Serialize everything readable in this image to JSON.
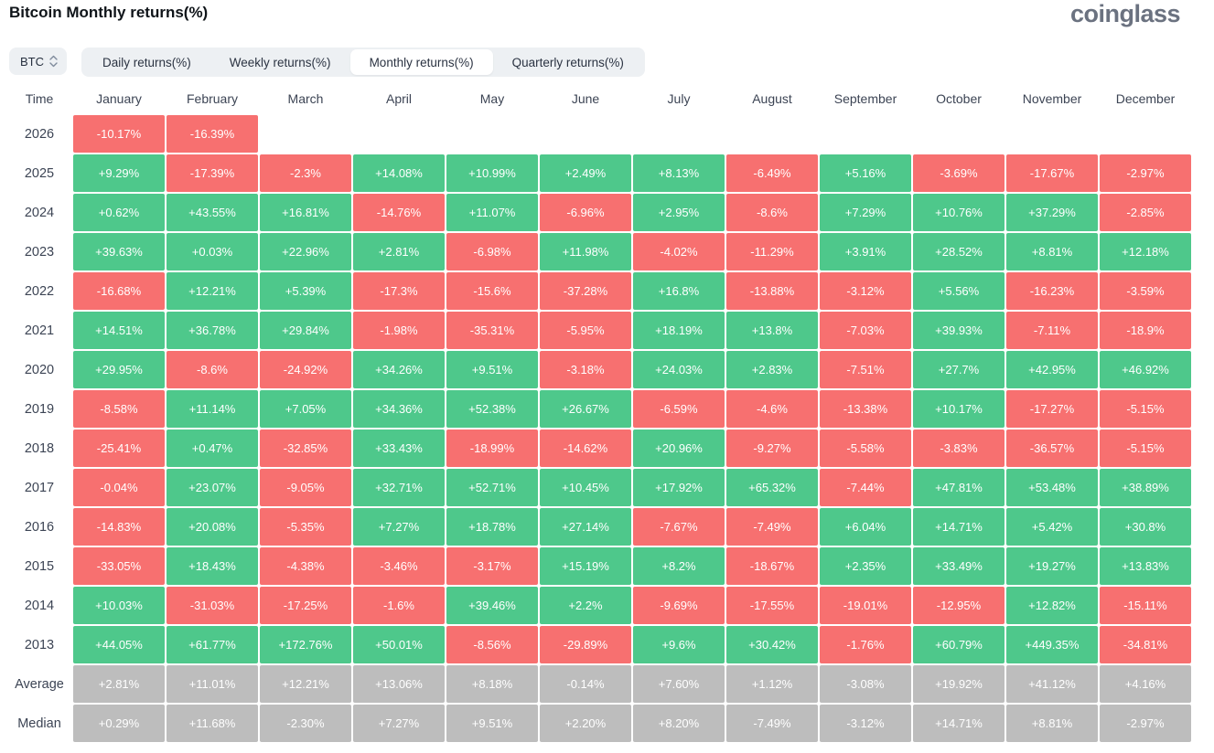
{
  "header": {
    "title": "Bitcoin Monthly returns(%)",
    "logo_text": "coinglass"
  },
  "controls": {
    "coin_selector": {
      "value": "BTC",
      "icon": "updown-chevrons-icon"
    },
    "tabs": [
      {
        "label": "Daily returns(%)",
        "active": false
      },
      {
        "label": "Weekly returns(%)",
        "active": false
      },
      {
        "label": "Monthly returns(%)",
        "active": true
      },
      {
        "label": "Quarterly returns(%)",
        "active": false
      }
    ]
  },
  "colors": {
    "positive": "#4ec88b",
    "negative": "#f77070",
    "neutral": "#bdbdbd",
    "tab_bg": "#edf0f3",
    "active_tab_bg": "#ffffff"
  },
  "chart_data": {
    "type": "heatmap",
    "title": "Bitcoin Monthly returns(%)",
    "time_header": "Time",
    "columns": [
      "January",
      "February",
      "March",
      "April",
      "May",
      "June",
      "July",
      "August",
      "September",
      "October",
      "November",
      "December"
    ],
    "legend": "green = positive monthly return, red = negative monthly return, gray = summary statistics",
    "rows": [
      {
        "label": "2026",
        "type": "year",
        "values": [
          "-10.17%",
          "-16.39%",
          null,
          null,
          null,
          null,
          null,
          null,
          null,
          null,
          null,
          null
        ]
      },
      {
        "label": "2025",
        "type": "year",
        "values": [
          "+9.29%",
          "-17.39%",
          "-2.3%",
          "+14.08%",
          "+10.99%",
          "+2.49%",
          "+8.13%",
          "-6.49%",
          "+5.16%",
          "-3.69%",
          "-17.67%",
          "-2.97%"
        ]
      },
      {
        "label": "2024",
        "type": "year",
        "values": [
          "+0.62%",
          "+43.55%",
          "+16.81%",
          "-14.76%",
          "+11.07%",
          "-6.96%",
          "+2.95%",
          "-8.6%",
          "+7.29%",
          "+10.76%",
          "+37.29%",
          "-2.85%"
        ]
      },
      {
        "label": "2023",
        "type": "year",
        "values": [
          "+39.63%",
          "+0.03%",
          "+22.96%",
          "+2.81%",
          "-6.98%",
          "+11.98%",
          "-4.02%",
          "-11.29%",
          "+3.91%",
          "+28.52%",
          "+8.81%",
          "+12.18%"
        ]
      },
      {
        "label": "2022",
        "type": "year",
        "values": [
          "-16.68%",
          "+12.21%",
          "+5.39%",
          "-17.3%",
          "-15.6%",
          "-37.28%",
          "+16.8%",
          "-13.88%",
          "-3.12%",
          "+5.56%",
          "-16.23%",
          "-3.59%"
        ]
      },
      {
        "label": "2021",
        "type": "year",
        "values": [
          "+14.51%",
          "+36.78%",
          "+29.84%",
          "-1.98%",
          "-35.31%",
          "-5.95%",
          "+18.19%",
          "+13.8%",
          "-7.03%",
          "+39.93%",
          "-7.11%",
          "-18.9%"
        ]
      },
      {
        "label": "2020",
        "type": "year",
        "values": [
          "+29.95%",
          "-8.6%",
          "-24.92%",
          "+34.26%",
          "+9.51%",
          "-3.18%",
          "+24.03%",
          "+2.83%",
          "-7.51%",
          "+27.7%",
          "+42.95%",
          "+46.92%"
        ]
      },
      {
        "label": "2019",
        "type": "year",
        "values": [
          "-8.58%",
          "+11.14%",
          "+7.05%",
          "+34.36%",
          "+52.38%",
          "+26.67%",
          "-6.59%",
          "-4.6%",
          "-13.38%",
          "+10.17%",
          "-17.27%",
          "-5.15%"
        ]
      },
      {
        "label": "2018",
        "type": "year",
        "values": [
          "-25.41%",
          "+0.47%",
          "-32.85%",
          "+33.43%",
          "-18.99%",
          "-14.62%",
          "+20.96%",
          "-9.27%",
          "-5.58%",
          "-3.83%",
          "-36.57%",
          "-5.15%"
        ]
      },
      {
        "label": "2017",
        "type": "year",
        "values": [
          "-0.04%",
          "+23.07%",
          "-9.05%",
          "+32.71%",
          "+52.71%",
          "+10.45%",
          "+17.92%",
          "+65.32%",
          "-7.44%",
          "+47.81%",
          "+53.48%",
          "+38.89%"
        ]
      },
      {
        "label": "2016",
        "type": "year",
        "values": [
          "-14.83%",
          "+20.08%",
          "-5.35%",
          "+7.27%",
          "+18.78%",
          "+27.14%",
          "-7.67%",
          "-7.49%",
          "+6.04%",
          "+14.71%",
          "+5.42%",
          "+30.8%"
        ]
      },
      {
        "label": "2015",
        "type": "year",
        "values": [
          "-33.05%",
          "+18.43%",
          "-4.38%",
          "-3.46%",
          "-3.17%",
          "+15.19%",
          "+8.2%",
          "-18.67%",
          "+2.35%",
          "+33.49%",
          "+19.27%",
          "+13.83%"
        ]
      },
      {
        "label": "2014",
        "type": "year",
        "values": [
          "+10.03%",
          "-31.03%",
          "-17.25%",
          "-1.6%",
          "+39.46%",
          "+2.2%",
          "-9.69%",
          "-17.55%",
          "-19.01%",
          "-12.95%",
          "+12.82%",
          "-15.11%"
        ]
      },
      {
        "label": "2013",
        "type": "year",
        "values": [
          "+44.05%",
          "+61.77%",
          "+172.76%",
          "+50.01%",
          "-8.56%",
          "-29.89%",
          "+9.6%",
          "+30.42%",
          "-1.76%",
          "+60.79%",
          "+449.35%",
          "-34.81%"
        ]
      },
      {
        "label": "Average",
        "type": "stat",
        "values": [
          "+2.81%",
          "+11.01%",
          "+12.21%",
          "+13.06%",
          "+8.18%",
          "-0.14%",
          "+7.60%",
          "+1.12%",
          "-3.08%",
          "+19.92%",
          "+41.12%",
          "+4.16%"
        ]
      },
      {
        "label": "Median",
        "type": "stat",
        "values": [
          "+0.29%",
          "+11.68%",
          "-2.30%",
          "+7.27%",
          "+9.51%",
          "+2.20%",
          "+8.20%",
          "-7.49%",
          "-3.12%",
          "+14.71%",
          "+8.81%",
          "-2.97%"
        ]
      }
    ]
  }
}
